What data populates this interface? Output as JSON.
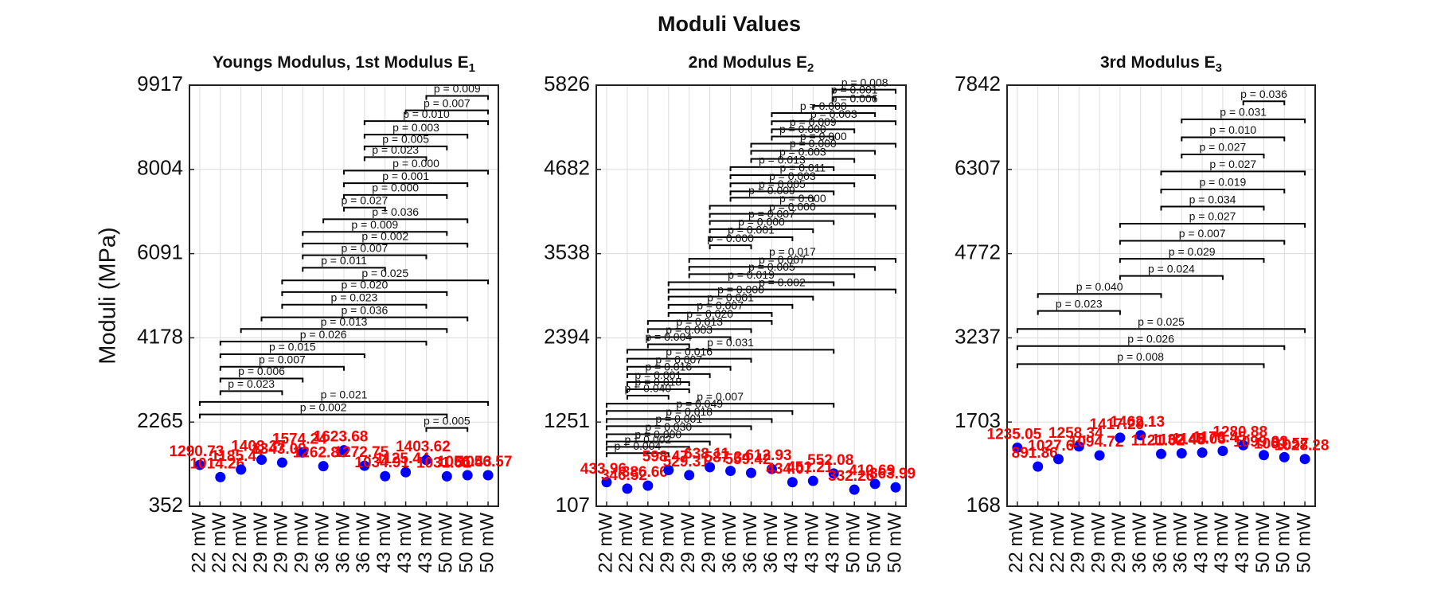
{
  "title": "Moduli Values",
  "chart_data": [
    {
      "type": "dot",
      "title": "Youngs Modulus, 1st Modulus E",
      "title_subscript": "1",
      "ylabel": "Moduli (MPa)",
      "categories": [
        "22 mW",
        "22 mW",
        "22 mW",
        "29 mW",
        "29 mW",
        "29 mW",
        "36 mW",
        "36 mW",
        "36 mW",
        "43 mW",
        "43 mW",
        "43 mW",
        "50 mW",
        "50 mW",
        "50 mW"
      ],
      "color": "#0000ff",
      "label_color": "#ff0000",
      "values": [
        1290.73,
        1014.26,
        1185.41,
        1408.37,
        1343.09,
        1574.24,
        1262.88,
        1623.68,
        1272.75,
        1034.91,
        1125.44,
        1403.62,
        1031.61,
        1056.43,
        1056.57
      ],
      "ylim": [
        352,
        9917
      ],
      "yticks": [
        352,
        2265,
        4178,
        6091,
        8004,
        9917
      ],
      "grid": true,
      "brackets": [
        {
          "span": [
            11,
            14
          ],
          "y": 9673,
          "label": "p = 0.009"
        },
        {
          "span": [
            10,
            14
          ],
          "y": 9346,
          "label": "p = 0.007"
        },
        {
          "span": [
            8,
            14
          ],
          "y": 9100,
          "label": "p = 0.010"
        },
        {
          "span": [
            8,
            13
          ],
          "y": 8794,
          "label": "p = 0.003"
        },
        {
          "span": [
            8,
            12
          ],
          "y": 8528,
          "label": "p = 0.005"
        },
        {
          "span": [
            8,
            11
          ],
          "y": 8283,
          "label": "p = 0.023"
        },
        {
          "span": [
            7,
            14
          ],
          "y": 7976,
          "label": "p = 0.000"
        },
        {
          "span": [
            7,
            13
          ],
          "y": 7690,
          "label": "p = 0.001"
        },
        {
          "span": [
            7,
            12
          ],
          "y": 7424,
          "label": "p = 0.000"
        },
        {
          "span": [
            7,
            9
          ],
          "y": 7138,
          "label": "p = 0.027"
        },
        {
          "span": [
            6,
            13
          ],
          "y": 6872,
          "label": "p = 0.036"
        },
        {
          "span": [
            5,
            12
          ],
          "y": 6586,
          "label": "p = 0.009"
        },
        {
          "span": [
            5,
            13
          ],
          "y": 6320,
          "label": "p = 0.002"
        },
        {
          "span": [
            5,
            11
          ],
          "y": 6055,
          "label": "p = 0.007"
        },
        {
          "span": [
            5,
            9
          ],
          "y": 5769,
          "label": "p = 0.011"
        },
        {
          "span": [
            4,
            14
          ],
          "y": 5482,
          "label": "p = 0.025"
        },
        {
          "span": [
            4,
            12
          ],
          "y": 5217,
          "label": "p = 0.020"
        },
        {
          "span": [
            4,
            11
          ],
          "y": 4931,
          "label": "p = 0.023"
        },
        {
          "span": [
            3,
            13
          ],
          "y": 4644,
          "label": "p = 0.036"
        },
        {
          "span": [
            2,
            12
          ],
          "y": 4379,
          "label": "p = 0.013"
        },
        {
          "span": [
            1,
            11
          ],
          "y": 4093,
          "label": "p = 0.026"
        },
        {
          "span": [
            1,
            8
          ],
          "y": 3806,
          "label": "p = 0.015"
        },
        {
          "span": [
            1,
            7
          ],
          "y": 3520,
          "label": "p = 0.007"
        },
        {
          "span": [
            1,
            5
          ],
          "y": 3254,
          "label": "p = 0.006"
        },
        {
          "span": [
            1,
            4
          ],
          "y": 2968,
          "label": "p = 0.023"
        },
        {
          "span": [
            0,
            14
          ],
          "y": 2723,
          "label": "p = 0.021"
        },
        {
          "span": [
            0,
            12
          ],
          "y": 2437,
          "label": "p = 0.002"
        },
        {
          "span": [
            11,
            13
          ],
          "y": 2130,
          "label": "p = 0.005"
        }
      ]
    },
    {
      "type": "dot",
      "title": "2nd Modulus E",
      "title_subscript": "2",
      "categories": [
        "22 mW",
        "22 mW",
        "22 mW",
        "29 mW",
        "29 mW",
        "29 mW",
        "36 mW",
        "36 mW",
        "36 mW",
        "43 mW",
        "43 mW",
        "43 mW",
        "50 mW",
        "50 mW",
        "50 mW"
      ],
      "color": "#0000ff",
      "label_color": "#ff0000",
      "values": [
        433.96,
        346.52,
        386.66,
        598.47,
        529.31,
        638.11,
        587.34,
        559.42,
        612.93,
        434.07,
        451.21,
        552.08,
        332.26,
        410.69,
        363.99
      ],
      "ylim": [
        107,
        5826
      ],
      "yticks": [
        107,
        1251,
        2394,
        3538,
        4682,
        5826
      ],
      "grid": true,
      "brackets": [
        {
          "span": [
            11,
            14
          ],
          "y": 5765,
          "label": "p = 0.008"
        },
        {
          "span": [
            11,
            13
          ],
          "y": 5667,
          "label": "p = 0.001"
        },
        {
          "span": [
            10,
            14
          ],
          "y": 5545,
          "label": "p = 0.006"
        },
        {
          "span": [
            8,
            13
          ],
          "y": 5447,
          "label": "p = 0.000"
        },
        {
          "span": [
            8,
            14
          ],
          "y": 5337,
          "label": "p = 0.003"
        },
        {
          "span": [
            8,
            12
          ],
          "y": 5227,
          "label": "p = 0.009"
        },
        {
          "span": [
            8,
            11
          ],
          "y": 5129,
          "label": "p = 0.000"
        },
        {
          "span": [
            7,
            14
          ],
          "y": 5032,
          "label": "p = 0.000"
        },
        {
          "span": [
            7,
            13
          ],
          "y": 4934,
          "label": "p = 0.000"
        },
        {
          "span": [
            7,
            12
          ],
          "y": 4824,
          "label": "p = 0.003"
        },
        {
          "span": [
            6,
            11
          ],
          "y": 4714,
          "label": "p = 0.013"
        },
        {
          "span": [
            6,
            13
          ],
          "y": 4604,
          "label": "p = 0.011"
        },
        {
          "span": [
            6,
            12
          ],
          "y": 4494,
          "label": "p = 0.003"
        },
        {
          "span": [
            6,
            11
          ],
          "y": 4384,
          "label": "p = 0.005"
        },
        {
          "span": [
            6,
            10
          ],
          "y": 4298,
          "label": "p = 0.009"
        },
        {
          "span": [
            5,
            14
          ],
          "y": 4188,
          "label": "p = 0.000"
        },
        {
          "span": [
            5,
            13
          ],
          "y": 4079,
          "label": "p = 0.000"
        },
        {
          "span": [
            5,
            11
          ],
          "y": 3981,
          "label": "p = 0.007"
        },
        {
          "span": [
            5,
            10
          ],
          "y": 3871,
          "label": "p = 0.000"
        },
        {
          "span": [
            5,
            9
          ],
          "y": 3761,
          "label": "p = 0.001"
        },
        {
          "span": [
            5,
            7
          ],
          "y": 3651,
          "label": "p = 0.000"
        },
        {
          "span": [
            4,
            14
          ],
          "y": 3468,
          "label": "p = 0.017"
        },
        {
          "span": [
            4,
            13
          ],
          "y": 3358,
          "label": "p = 0.007"
        },
        {
          "span": [
            4,
            12
          ],
          "y": 3260,
          "label": "p = 0.005"
        },
        {
          "span": [
            3,
            11
          ],
          "y": 3150,
          "label": "p = 0.019"
        },
        {
          "span": [
            3,
            14
          ],
          "y": 3052,
          "label": "p = 0.002"
        },
        {
          "span": [
            3,
            10
          ],
          "y": 2954,
          "label": "p = 0.000"
        },
        {
          "span": [
            3,
            9
          ],
          "y": 2844,
          "label": "p = 0.001"
        },
        {
          "span": [
            3,
            8
          ],
          "y": 2734,
          "label": "p = 0.007"
        },
        {
          "span": [
            2,
            8
          ],
          "y": 2624,
          "label": "p = 0.020"
        },
        {
          "span": [
            2,
            7
          ],
          "y": 2514,
          "label": "p = 0.013"
        },
        {
          "span": [
            2,
            6
          ],
          "y": 2404,
          "label": "p = 0.003"
        },
        {
          "span": [
            2,
            4
          ],
          "y": 2307,
          "label": "p = 0.004"
        },
        {
          "span": [
            1,
            11
          ],
          "y": 2233,
          "label": "p = 0.031"
        },
        {
          "span": [
            1,
            7
          ],
          "y": 2111,
          "label": "p = 0.016"
        },
        {
          "span": [
            1,
            6
          ],
          "y": 2001,
          "label": "p = 0.007"
        },
        {
          "span": [
            1,
            5
          ],
          "y": 1903,
          "label": "p = 0.016"
        },
        {
          "span": [
            1,
            4
          ],
          "y": 1793,
          "label": "p = 0.001"
        },
        {
          "span": [
            1,
            4
          ],
          "y": 1696,
          "label": "p = 0.018"
        },
        {
          "span": [
            1,
            3
          ],
          "y": 1610,
          "label": "p = 0.040"
        },
        {
          "span": [
            0,
            11
          ],
          "y": 1500,
          "label": "p = 0.007"
        },
        {
          "span": [
            0,
            9
          ],
          "y": 1402,
          "label": "p = 0.049"
        },
        {
          "span": [
            0,
            8
          ],
          "y": 1292,
          "label": "p = 0.018"
        },
        {
          "span": [
            0,
            7
          ],
          "y": 1195,
          "label": "p = 0.001"
        },
        {
          "span": [
            0,
            6
          ],
          "y": 1085,
          "label": "p = 0.030"
        },
        {
          "span": [
            0,
            5
          ],
          "y": 987,
          "label": "p = 0.000"
        },
        {
          "span": [
            0,
            4
          ],
          "y": 914,
          "label": "p = 0.002"
        },
        {
          "span": [
            0,
            3
          ],
          "y": 828,
          "label": "p = 0.004"
        }
      ]
    },
    {
      "type": "dot",
      "title": "3rd Modulus E",
      "title_subscript": "3",
      "categories": [
        "22 mW",
        "22 mW",
        "22 mW",
        "29 mW",
        "29 mW",
        "29 mW",
        "36 mW",
        "36 mW",
        "36 mW",
        "43 mW",
        "43 mW",
        "43 mW",
        "50 mW",
        "50 mW",
        "50 mW"
      ],
      "color": "#0000ff",
      "label_color": "#ff0000",
      "values": [
        1235.05,
        891.86,
        1027.61,
        1258.34,
        1094.72,
        1417.29,
        1462.13,
        1121.02,
        1132.48,
        1145.03,
        1176.45,
        1280.88,
        1099.93,
        1061.57,
        1028.28
      ],
      "ylim": [
        168,
        7842
      ],
      "yticks": [
        168,
        1703,
        3237,
        4772,
        6307,
        7842
      ],
      "grid": true,
      "brackets": [
        {
          "span": [
            11,
            13
          ],
          "y": 7548,
          "label": "p = 0.036"
        },
        {
          "span": [
            8,
            14
          ],
          "y": 7220,
          "label": "p = 0.031"
        },
        {
          "span": [
            8,
            13
          ],
          "y": 6892,
          "label": "p = 0.010"
        },
        {
          "span": [
            8,
            12
          ],
          "y": 6580,
          "label": "p = 0.027"
        },
        {
          "span": [
            7,
            14
          ],
          "y": 6269,
          "label": "p = 0.027"
        },
        {
          "span": [
            7,
            13
          ],
          "y": 5941,
          "label": "p = 0.019"
        },
        {
          "span": [
            7,
            12
          ],
          "y": 5629,
          "label": "p = 0.034"
        },
        {
          "span": [
            5,
            14
          ],
          "y": 5318,
          "label": "p = 0.027"
        },
        {
          "span": [
            5,
            13
          ],
          "y": 5006,
          "label": "p = 0.007"
        },
        {
          "span": [
            5,
            12
          ],
          "y": 4678,
          "label": "p = 0.029"
        },
        {
          "span": [
            5,
            10
          ],
          "y": 4366,
          "label": "p = 0.024"
        },
        {
          "span": [
            1,
            7
          ],
          "y": 4038,
          "label": "p = 0.040"
        },
        {
          "span": [
            1,
            5
          ],
          "y": 3727,
          "label": "p = 0.023"
        },
        {
          "span": [
            0,
            14
          ],
          "y": 3399,
          "label": "p = 0.025"
        },
        {
          "span": [
            0,
            13
          ],
          "y": 3087,
          "label": "p = 0.026"
        },
        {
          "span": [
            0,
            12
          ],
          "y": 2759,
          "label": "p = 0.008"
        }
      ]
    }
  ]
}
